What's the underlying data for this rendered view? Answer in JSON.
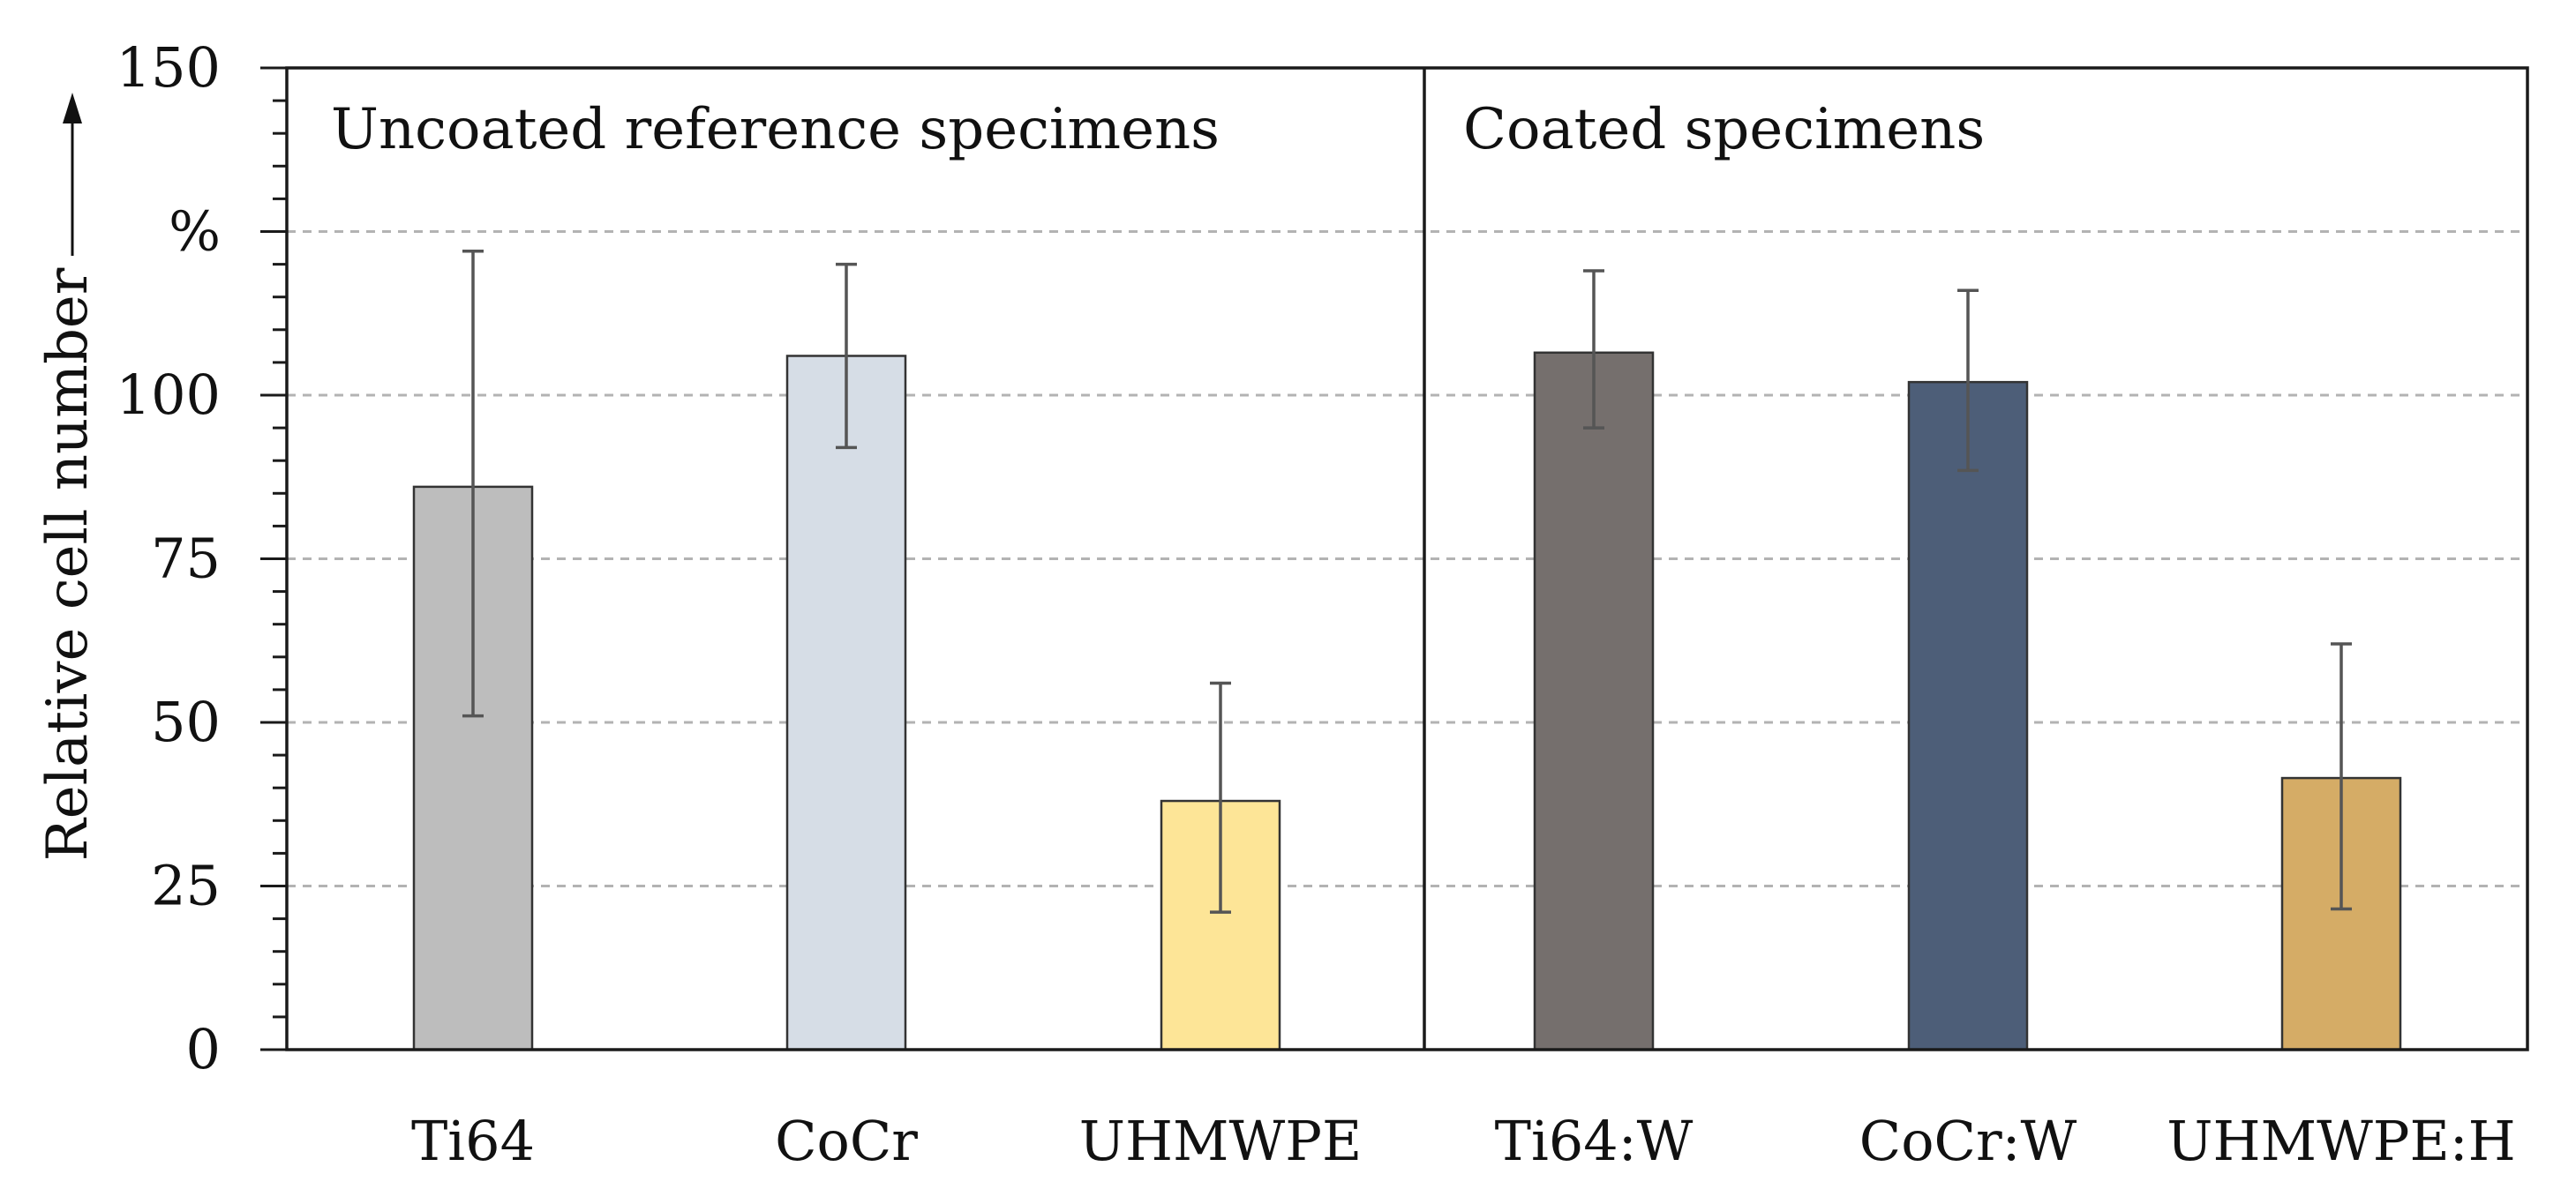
{
  "chart_data": {
    "type": "bar",
    "ylabel": "Relative cell number",
    "y_unit": "%",
    "ylim": [
      0,
      150
    ],
    "major_ticks": [
      0,
      25,
      50,
      75,
      100,
      150
    ],
    "gridlines": [
      25,
      50,
      75,
      100,
      125
    ],
    "minor_tick_step": 5,
    "groups": [
      {
        "label": "Uncoated reference specimens",
        "categories": [
          "Ti64",
          "CoCr",
          "UHMWPE"
        ]
      },
      {
        "label": "Coated specimens",
        "categories": [
          "Ti64:W",
          "CoCr:W",
          "UHMWPE:H"
        ]
      }
    ],
    "categories": [
      "Ti64",
      "CoCr",
      "UHMWPE",
      "Ti64:W",
      "CoCr:W",
      "UHMWPE:H"
    ],
    "values": [
      86,
      106,
      38,
      106.5,
      102,
      41.5
    ],
    "error_low": [
      51,
      92,
      21,
      95,
      88.5,
      21.5
    ],
    "error_high": [
      122,
      120,
      56,
      119,
      116,
      62
    ],
    "colors": [
      "#bdbdbd",
      "#d6dde6",
      "#fde597",
      "#756f6d",
      "#4d5e78",
      "#d5ac66"
    ]
  }
}
